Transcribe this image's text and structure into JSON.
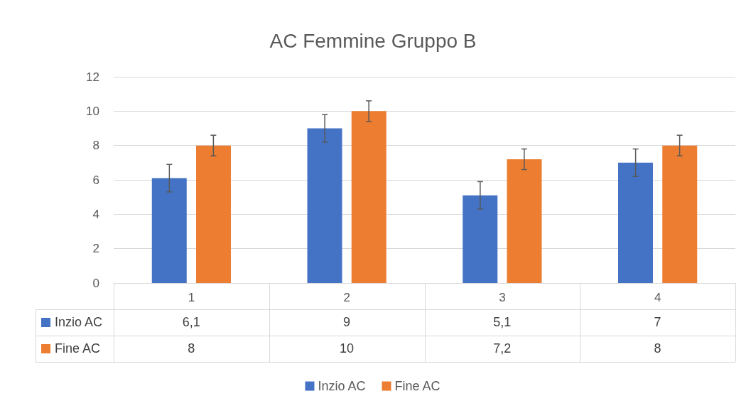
{
  "chart_data": {
    "type": "bar",
    "title": "AC Femmine Gruppo B",
    "categories": [
      "1",
      "2",
      "3",
      "4"
    ],
    "series": [
      {
        "name": "Inzio AC",
        "color": "#4472c4",
        "values": [
          6.1,
          9,
          5.1,
          7
        ],
        "errors": [
          0.8,
          0.8,
          0.8,
          0.8
        ],
        "value_labels": [
          "6,1",
          "9",
          "5,1",
          "7"
        ]
      },
      {
        "name": "Fine AC",
        "color": "#ed7d31",
        "values": [
          8,
          10,
          7.2,
          8
        ],
        "errors": [
          0.6,
          0.6,
          0.6,
          0.6
        ],
        "value_labels": [
          "8",
          "10",
          "7,2",
          "8"
        ]
      }
    ],
    "ylim": [
      0,
      12
    ],
    "yticks": [
      0,
      2,
      4,
      6,
      8,
      10,
      12
    ],
    "grid": "y",
    "legend": "bottom"
  }
}
